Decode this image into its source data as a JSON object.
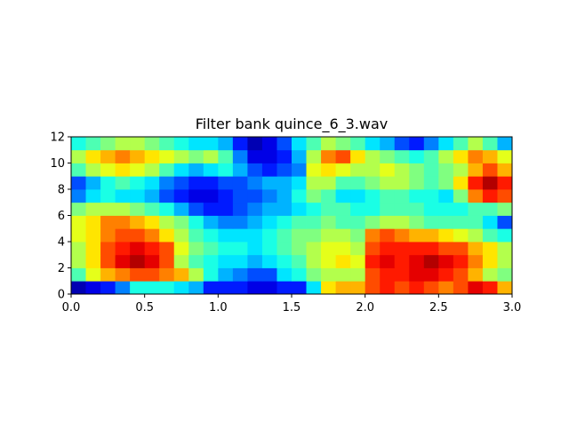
{
  "chart_data": {
    "type": "heatmap",
    "title": "Filter bank quince_6_3.wav",
    "xlabel": "",
    "ylabel": "",
    "xlim": [
      0.0,
      3.0
    ],
    "ylim": [
      0,
      12
    ],
    "x_ticks": [
      "0.0",
      "0.5",
      "1.0",
      "1.5",
      "2.0",
      "2.5",
      "3.0"
    ],
    "y_ticks": [
      "0",
      "2",
      "4",
      "6",
      "8",
      "10",
      "12"
    ],
    "colormap": "jet",
    "value_range": [
      0.0,
      1.0
    ],
    "grid": false,
    "legend": "none",
    "time_frames": 30,
    "filter_bands": 12,
    "values": [
      [
        0.05,
        0.1,
        0.15,
        0.25,
        0.4,
        0.4,
        0.4,
        0.35,
        0.3,
        0.15,
        0.15,
        0.15,
        0.1,
        0.1,
        0.15,
        0.15,
        0.35,
        0.65,
        0.7,
        0.7,
        0.8,
        0.85,
        0.8,
        0.85,
        0.8,
        0.75,
        0.8,
        0.9,
        0.85,
        0.7
      ],
      [
        0.45,
        0.6,
        0.7,
        0.75,
        0.8,
        0.8,
        0.75,
        0.7,
        0.55,
        0.4,
        0.3,
        0.25,
        0.2,
        0.2,
        0.35,
        0.4,
        0.5,
        0.55,
        0.55,
        0.55,
        0.8,
        0.85,
        0.85,
        0.9,
        0.9,
        0.85,
        0.8,
        0.7,
        0.55,
        0.5
      ],
      [
        0.55,
        0.65,
        0.8,
        0.9,
        0.95,
        0.9,
        0.8,
        0.55,
        0.45,
        0.4,
        0.35,
        0.35,
        0.3,
        0.35,
        0.4,
        0.45,
        0.55,
        0.6,
        0.65,
        0.6,
        0.85,
        0.9,
        0.85,
        0.9,
        0.95,
        0.9,
        0.85,
        0.75,
        0.65,
        0.55
      ],
      [
        0.55,
        0.65,
        0.8,
        0.85,
        0.9,
        0.85,
        0.8,
        0.6,
        0.5,
        0.45,
        0.4,
        0.4,
        0.35,
        0.4,
        0.45,
        0.5,
        0.55,
        0.6,
        0.6,
        0.55,
        0.8,
        0.85,
        0.85,
        0.85,
        0.85,
        0.8,
        0.8,
        0.7,
        0.65,
        0.55
      ],
      [
        0.6,
        0.65,
        0.75,
        0.8,
        0.8,
        0.75,
        0.65,
        0.55,
        0.45,
        0.4,
        0.35,
        0.35,
        0.35,
        0.4,
        0.45,
        0.5,
        0.5,
        0.55,
        0.55,
        0.5,
        0.75,
        0.8,
        0.75,
        0.7,
        0.7,
        0.65,
        0.6,
        0.55,
        0.45,
        0.4
      ],
      [
        0.6,
        0.65,
        0.75,
        0.75,
        0.7,
        0.65,
        0.55,
        0.5,
        0.4,
        0.3,
        0.25,
        0.25,
        0.3,
        0.35,
        0.4,
        0.45,
        0.45,
        0.5,
        0.45,
        0.45,
        0.5,
        0.55,
        0.55,
        0.5,
        0.45,
        0.45,
        0.45,
        0.45,
        0.35,
        0.2
      ],
      [
        0.5,
        0.55,
        0.55,
        0.55,
        0.5,
        0.45,
        0.4,
        0.3,
        0.2,
        0.15,
        0.15,
        0.2,
        0.25,
        0.3,
        0.3,
        0.35,
        0.4,
        0.45,
        0.45,
        0.4,
        0.4,
        0.45,
        0.45,
        0.45,
        0.4,
        0.4,
        0.4,
        0.45,
        0.45,
        0.5
      ],
      [
        0.25,
        0.35,
        0.4,
        0.35,
        0.35,
        0.3,
        0.2,
        0.15,
        0.1,
        0.1,
        0.15,
        0.2,
        0.2,
        0.25,
        0.3,
        0.4,
        0.5,
        0.45,
        0.35,
        0.35,
        0.4,
        0.45,
        0.45,
        0.4,
        0.4,
        0.35,
        0.5,
        0.75,
        0.85,
        0.8
      ],
      [
        0.2,
        0.3,
        0.4,
        0.45,
        0.4,
        0.35,
        0.25,
        0.2,
        0.15,
        0.15,
        0.2,
        0.2,
        0.25,
        0.3,
        0.3,
        0.35,
        0.55,
        0.55,
        0.45,
        0.45,
        0.5,
        0.55,
        0.55,
        0.5,
        0.45,
        0.5,
        0.65,
        0.85,
        0.95,
        0.85
      ],
      [
        0.45,
        0.55,
        0.6,
        0.65,
        0.6,
        0.55,
        0.45,
        0.35,
        0.3,
        0.35,
        0.4,
        0.3,
        0.2,
        0.15,
        0.2,
        0.25,
        0.6,
        0.65,
        0.6,
        0.55,
        0.55,
        0.6,
        0.55,
        0.5,
        0.45,
        0.5,
        0.55,
        0.7,
        0.8,
        0.7
      ],
      [
        0.55,
        0.65,
        0.7,
        0.75,
        0.7,
        0.65,
        0.6,
        0.55,
        0.5,
        0.55,
        0.45,
        0.25,
        0.1,
        0.1,
        0.15,
        0.3,
        0.55,
        0.75,
        0.8,
        0.65,
        0.55,
        0.5,
        0.45,
        0.4,
        0.45,
        0.55,
        0.65,
        0.75,
        0.7,
        0.6
      ],
      [
        0.4,
        0.45,
        0.5,
        0.55,
        0.55,
        0.5,
        0.45,
        0.4,
        0.35,
        0.35,
        0.3,
        0.15,
        0.05,
        0.1,
        0.2,
        0.35,
        0.45,
        0.55,
        0.5,
        0.45,
        0.35,
        0.3,
        0.2,
        0.15,
        0.25,
        0.35,
        0.45,
        0.55,
        0.45,
        0.3
      ]
    ]
  }
}
